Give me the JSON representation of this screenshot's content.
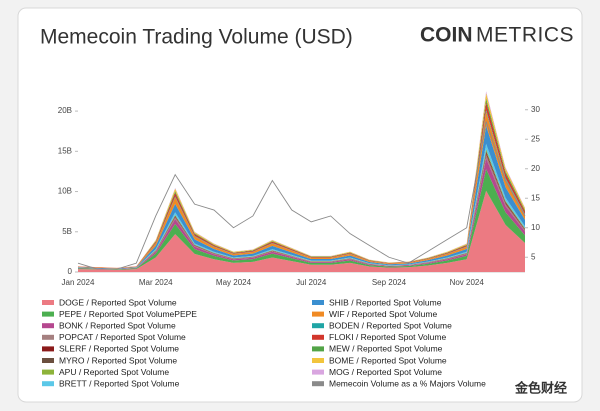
{
  "chart_data": {
    "type": "area",
    "title": "Memecoin Trading Volume (USD)",
    "brand_bold": "COIN",
    "brand_light": "METRICS",
    "watermark": "金色财经",
    "categories": [
      "Jan 2024",
      null,
      null,
      null,
      "Mar 2024",
      null,
      null,
      null,
      "May 2024",
      null,
      null,
      null,
      "Jul 2024",
      null,
      null,
      null,
      "Sep 2024",
      null,
      null,
      null,
      "Nov 2024",
      null,
      null,
      null
    ],
    "ylim": [
      0,
      22
    ],
    "yticks": [
      0,
      {
        "value": 5,
        "label": "5B"
      },
      {
        "value": 10,
        "label": "10B"
      },
      {
        "value": 15,
        "label": "15B"
      },
      {
        "value": 20,
        "label": "20B"
      }
    ],
    "y2lim": [
      2.5,
      32.5
    ],
    "y2ticks": [
      5,
      10,
      15,
      20,
      25,
      30
    ],
    "stacked": true,
    "series": [
      {
        "name": "DOGE / Reported Spot Volume",
        "color": "#ec7a82",
        "values": [
          0.36,
          0.32,
          0.27,
          0.36,
          1.8,
          4.7,
          2.25,
          1.58,
          1.13,
          1.26,
          1.8,
          1.35,
          0.9,
          0.9,
          1.13,
          0.68,
          0.54,
          0.59,
          0.81,
          1.13,
          1.58,
          10.1,
          5.85,
          3.6
        ]
      },
      {
        "name": "PEPE / Reported Spot VolumePEPE",
        "color": "#4caf50",
        "values": [
          0.1,
          0.08,
          0.07,
          0.1,
          0.48,
          1.26,
          0.6,
          0.42,
          0.3,
          0.34,
          0.48,
          0.36,
          0.24,
          0.24,
          0.3,
          0.18,
          0.14,
          0.16,
          0.22,
          0.3,
          0.42,
          2.7,
          1.56,
          0.96
        ]
      },
      {
        "name": "BONK / Reported Spot Volume",
        "color": "#b5488f",
        "values": [
          0.05,
          0.04,
          0.04,
          0.05,
          0.24,
          0.63,
          0.3,
          0.21,
          0.15,
          0.17,
          0.24,
          0.18,
          0.12,
          0.12,
          0.15,
          0.09,
          0.07,
          0.08,
          0.11,
          0.15,
          0.21,
          1.35,
          0.78,
          0.48
        ]
      },
      {
        "name": "POPCAT / Reported Spot Volume",
        "color": "#a58080",
        "values": [
          0.02,
          0.01,
          0.01,
          0.02,
          0.08,
          0.21,
          0.1,
          0.07,
          0.05,
          0.06,
          0.08,
          0.06,
          0.04,
          0.04,
          0.05,
          0.03,
          0.02,
          0.03,
          0.04,
          0.05,
          0.07,
          0.45,
          0.26,
          0.16
        ]
      },
      {
        "name": "SLERF / Reported Spot Volume",
        "color": "#8b1a1a",
        "values": [
          0,
          0,
          0,
          0,
          0.04,
          0.1,
          0.05,
          0.04,
          0.03,
          0.03,
          0.04,
          0.03,
          0.02,
          0.02,
          0.03,
          0.02,
          0.01,
          0.01,
          0.02,
          0.03,
          0.04,
          0.22,
          0.13,
          0.08
        ]
      },
      {
        "name": "MYRO / Reported Spot Volume",
        "color": "#6b4f3f",
        "values": [
          0,
          0,
          0,
          0,
          0.04,
          0.1,
          0.05,
          0.04,
          0.03,
          0.03,
          0.04,
          0.03,
          0.02,
          0.02,
          0.03,
          0.02,
          0.01,
          0.01,
          0.02,
          0.03,
          0.04,
          0.22,
          0.13,
          0.08
        ]
      },
      {
        "name": "APU / Reported Spot Volume",
        "color": "#8db33a",
        "values": [
          0,
          0,
          0,
          0,
          0.04,
          0.1,
          0.05,
          0.04,
          0.03,
          0.03,
          0.04,
          0.03,
          0.02,
          0.02,
          0.03,
          0.02,
          0.01,
          0.01,
          0.02,
          0.03,
          0.04,
          0.22,
          0.13,
          0.08
        ]
      },
      {
        "name": "BRETT / Reported Spot Volume",
        "color": "#5bc8e8",
        "values": [
          0,
          0,
          0,
          0,
          0.12,
          0.32,
          0.15,
          0.11,
          0.08,
          0.08,
          0.12,
          0.09,
          0.06,
          0.06,
          0.08,
          0.05,
          0.04,
          0.04,
          0.05,
          0.08,
          0.11,
          0.68,
          0.39,
          0.24
        ]
      },
      {
        "name": "SHIB / Reported Spot Volume",
        "color": "#3a8fd0",
        "values": [
          0.08,
          0.07,
          0.06,
          0.08,
          0.4,
          1.05,
          0.5,
          0.35,
          0.25,
          0.28,
          0.4,
          0.3,
          0.2,
          0.2,
          0.25,
          0.15,
          0.12,
          0.13,
          0.18,
          0.25,
          0.35,
          2.25,
          1.3,
          0.8
        ]
      },
      {
        "name": "WIF / Reported Spot Volume",
        "color": "#f08a24",
        "values": [
          0.06,
          0.06,
          0.05,
          0.06,
          0.32,
          0.84,
          0.4,
          0.28,
          0.2,
          0.22,
          0.32,
          0.24,
          0.16,
          0.16,
          0.2,
          0.12,
          0.1,
          0.1,
          0.14,
          0.2,
          0.28,
          1.8,
          1.04,
          0.64
        ]
      },
      {
        "name": "BODEN / Reported Spot Volume",
        "color": "#1fa5a5",
        "values": [
          0,
          0,
          0,
          0,
          0.04,
          0.1,
          0.05,
          0.04,
          0.03,
          0.03,
          0.04,
          0.03,
          0.02,
          0.02,
          0.03,
          0.02,
          0.01,
          0.01,
          0.02,
          0.03,
          0.04,
          0.22,
          0.13,
          0.08
        ]
      },
      {
        "name": "FLOKI / Reported Spot Volume",
        "color": "#d2362c",
        "values": [
          0.03,
          0.03,
          0.02,
          0.03,
          0.16,
          0.42,
          0.2,
          0.14,
          0.1,
          0.11,
          0.16,
          0.12,
          0.08,
          0.08,
          0.1,
          0.06,
          0.05,
          0.05,
          0.07,
          0.1,
          0.14,
          0.9,
          0.52,
          0.32
        ]
      },
      {
        "name": "MEW / Reported Spot Volume",
        "color": "#52a447",
        "values": [
          0,
          0,
          0,
          0,
          0.08,
          0.21,
          0.1,
          0.07,
          0.05,
          0.06,
          0.08,
          0.06,
          0.04,
          0.04,
          0.05,
          0.03,
          0.02,
          0.03,
          0.04,
          0.05,
          0.07,
          0.45,
          0.26,
          0.16
        ]
      },
      {
        "name": "BOME / Reported Spot Volume",
        "color": "#f2c53d",
        "values": [
          0,
          0,
          0,
          0,
          0.12,
          0.32,
          0.15,
          0.11,
          0.08,
          0.08,
          0.12,
          0.09,
          0.06,
          0.06,
          0.08,
          0.05,
          0.04,
          0.04,
          0.05,
          0.08,
          0.11,
          0.68,
          0.39,
          0.24
        ]
      },
      {
        "name": "MOG / Reported Spot Volume",
        "color": "#d9a6e0",
        "values": [
          0,
          0,
          0,
          0,
          0.04,
          0.1,
          0.05,
          0.04,
          0.03,
          0.03,
          0.04,
          0.03,
          0.02,
          0.02,
          0.03,
          0.02,
          0.01,
          0.01,
          0.02,
          0.03,
          0.04,
          0.22,
          0.13,
          0.08
        ]
      },
      {
        "name": "Memecoin Volume as a % Majors Volume",
        "color": "#8a8a8a",
        "axis": "y2",
        "type": "line",
        "values": [
          4,
          3,
          3,
          4,
          12,
          19,
          14,
          13,
          10,
          12,
          18,
          13,
          11,
          12,
          9,
          7,
          5,
          4,
          6,
          8,
          10,
          28,
          18,
          12
        ]
      }
    ]
  }
}
